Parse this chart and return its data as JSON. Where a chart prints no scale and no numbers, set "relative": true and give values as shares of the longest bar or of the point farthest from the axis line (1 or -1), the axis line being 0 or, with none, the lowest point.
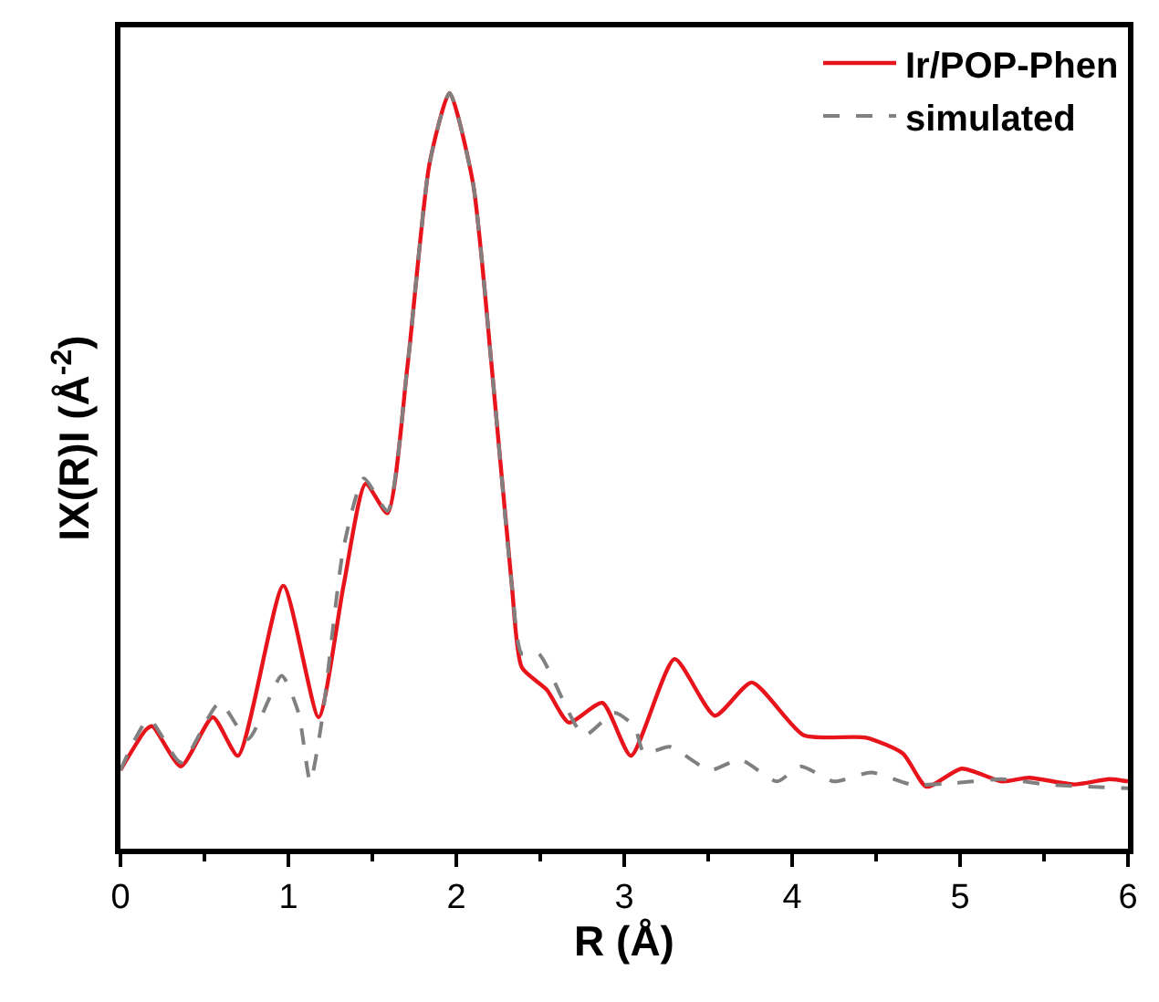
{
  "chart_data": {
    "type": "line",
    "relative": true,
    "xlabel": "R (Å)",
    "ylabel": "IX(R)I (Å$^{-2}$)",
    "xlim": [
      0,
      6
    ],
    "xticks": [
      0,
      1,
      2,
      3,
      4,
      5,
      6
    ],
    "tick_labels": "x",
    "legend": "top right",
    "marker": "none",
    "series": [
      {
        "name": "Ir/POP-Phen",
        "color": "#e8141c",
        "line_style": "solid",
        "x": [
          0,
          0.15,
          0.19,
          0.36,
          0.55,
          0.7,
          0.97,
          1.18,
          1.33,
          1.46,
          1.59,
          1.71,
          1.84,
          1.96,
          2.1,
          2.21,
          2.33,
          2.39,
          2.54,
          2.67,
          2.87,
          3.04,
          3.3,
          3.54,
          3.76,
          4.07,
          4.44,
          4.66,
          4.8,
          5.01,
          5.25,
          5.41,
          5.68,
          5.89,
          6.0
        ],
        "values": [
          0.104,
          0.157,
          0.162,
          0.109,
          0.174,
          0.123,
          0.348,
          0.174,
          0.35,
          0.483,
          0.444,
          0.64,
          0.906,
          1.0,
          0.88,
          0.64,
          0.35,
          0.24,
          0.21,
          0.167,
          0.193,
          0.123,
          0.251,
          0.176,
          0.22,
          0.15,
          0.147,
          0.126,
          0.082,
          0.106,
          0.089,
          0.094,
          0.085,
          0.092,
          0.089
        ]
      },
      {
        "name": "simulated",
        "color": "#808080",
        "line_style": "dashed",
        "x": [
          0,
          0.17,
          0.36,
          0.59,
          0.76,
          0.96,
          1.06,
          1.13,
          1.2,
          1.33,
          1.45,
          1.59,
          1.71,
          1.84,
          1.96,
          2.1,
          2.21,
          2.33,
          2.39,
          2.49,
          2.76,
          2.94,
          3.06,
          3.12,
          3.27,
          3.51,
          3.69,
          3.91,
          4.05,
          4.25,
          4.47,
          4.71,
          4.98,
          5.25,
          5.52,
          6.0
        ],
        "values": [
          0.104,
          0.171,
          0.114,
          0.193,
          0.145,
          0.229,
          0.18,
          0.089,
          0.17,
          0.4,
          0.49,
          0.447,
          0.64,
          0.906,
          1.0,
          0.88,
          0.64,
          0.35,
          0.258,
          0.258,
          0.15,
          0.18,
          0.162,
          0.126,
          0.135,
          0.104,
          0.118,
          0.089,
          0.109,
          0.089,
          0.101,
          0.085,
          0.087,
          0.092,
          0.085,
          0.08
        ]
      }
    ]
  }
}
